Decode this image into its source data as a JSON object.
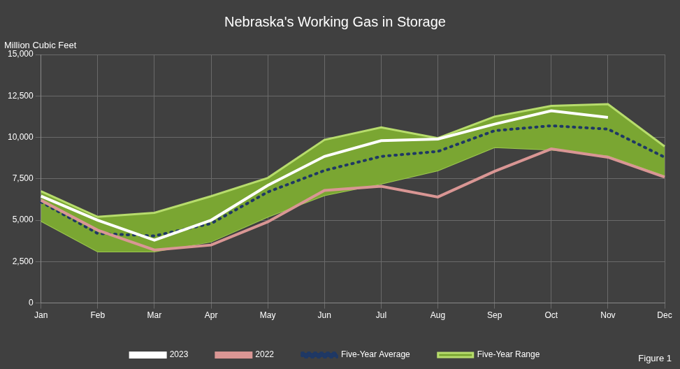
{
  "chart_data": {
    "type": "line",
    "title": "Nebraska's Working Gas in Storage",
    "y_label": "Million Cubic Feet",
    "annotation": "Figure 1",
    "categories": [
      "Jan",
      "Feb",
      "Mar",
      "Apr",
      "May",
      "Jun",
      "Jul",
      "Aug",
      "Sep",
      "Oct",
      "Nov",
      "Dec"
    ],
    "ylim": [
      0,
      15000
    ],
    "yticks": [
      0,
      {
        "value": 2500,
        "label": "2,500"
      },
      {
        "value": 5000,
        "label": "5,000"
      },
      {
        "value": 7500,
        "label": "7,500"
      },
      {
        "value": 10000,
        "label": "10,000"
      },
      {
        "value": 12500,
        "label": "12,500"
      },
      {
        "value": 15000,
        "label": "15,000"
      }
    ],
    "grid": true,
    "legend": "bottom",
    "series": [
      {
        "name": "Five-Year Range",
        "type": "area",
        "color": "#7aa632",
        "low": [
          4950,
          3100,
          3100,
          3700,
          5200,
          6500,
          7200,
          8000,
          9400,
          9250,
          8900,
          7700
        ],
        "high": [
          6750,
          5200,
          5450,
          6450,
          7550,
          9850,
          10600,
          9950,
          11250,
          11900,
          12000,
          9450
        ]
      },
      {
        "name": "Five-Year Average",
        "color": "#1f3864",
        "line_style": "dotted",
        "values": [
          6100,
          4200,
          4050,
          4800,
          6700,
          8000,
          8850,
          9150,
          10400,
          10700,
          10500,
          8800
        ]
      },
      {
        "name": "2022",
        "color": "#d99694",
        "line_style": "solid",
        "values": [
          6200,
          4400,
          3200,
          3500,
          4900,
          6800,
          7050,
          6400,
          7950,
          9300,
          8800,
          7600
        ]
      },
      {
        "name": "2023",
        "color": "#ffffff",
        "line_style": "solid",
        "values": [
          6450,
          5000,
          3800,
          5000,
          7100,
          8850,
          9800,
          9900,
          10800,
          11600,
          11200,
          null
        ]
      }
    ]
  }
}
